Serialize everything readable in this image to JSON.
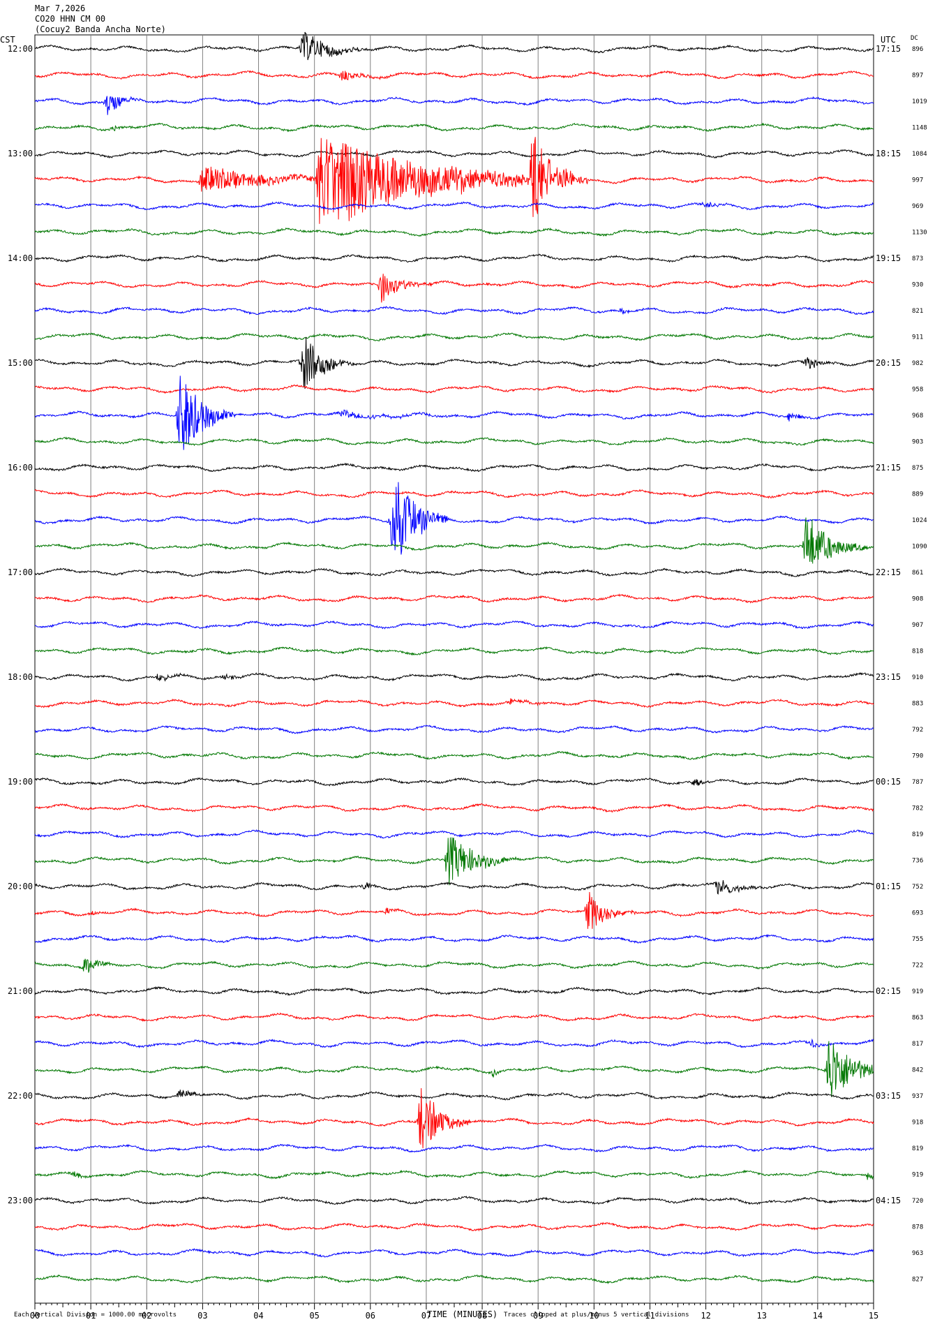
{
  "header": {
    "date": "Mar 7,2026",
    "channel": "CO20 HHN CM 00",
    "station": "(Cocuy2 Banda Ancha Norte)"
  },
  "left_axis_title": "CST",
  "right_axis_title": "UTC",
  "dc_title": "DC",
  "footer": {
    "scale_note": "Each Vertical Division = 1000.00 microvolts",
    "clip_note": "Traces clipped at plus/minus 5 vertical divisions"
  },
  "colors": {
    "trace_cycle": [
      "#000000",
      "#ff0000",
      "#0000ff",
      "#007700"
    ],
    "grid": "#808080"
  },
  "chart_data": {
    "type": "line",
    "xlabel": "TIME (MINUTES)",
    "xlim": [
      0,
      15
    ],
    "x_ticks": [
      "00",
      "01",
      "02",
      "03",
      "04",
      "05",
      "06",
      "07",
      "08",
      "09",
      "10",
      "11",
      "12",
      "13",
      "14",
      "15"
    ],
    "row_count": 48,
    "left_hour_labels": [
      {
        "row": 0,
        "label": "12:00"
      },
      {
        "row": 4,
        "label": "13:00"
      },
      {
        "row": 8,
        "label": "14:00"
      },
      {
        "row": 12,
        "label": "15:00"
      },
      {
        "row": 16,
        "label": "16:00"
      },
      {
        "row": 20,
        "label": "17:00"
      },
      {
        "row": 24,
        "label": "18:00"
      },
      {
        "row": 28,
        "label": "19:00"
      },
      {
        "row": 32,
        "label": "20:00"
      },
      {
        "row": 36,
        "label": "21:00"
      },
      {
        "row": 40,
        "label": "22:00"
      },
      {
        "row": 44,
        "label": "23:00"
      }
    ],
    "right_hour_labels": [
      {
        "row": 0,
        "label": "17:15"
      },
      {
        "row": 4,
        "label": "18:15"
      },
      {
        "row": 8,
        "label": "19:15"
      },
      {
        "row": 12,
        "label": "20:15"
      },
      {
        "row": 16,
        "label": "21:15"
      },
      {
        "row": 20,
        "label": "22:15"
      },
      {
        "row": 24,
        "label": "23:15"
      },
      {
        "row": 28,
        "label": "00:15"
      },
      {
        "row": 32,
        "label": "01:15"
      },
      {
        "row": 36,
        "label": "02:15"
      },
      {
        "row": 40,
        "label": "03:15"
      },
      {
        "row": 44,
        "label": "04:15"
      }
    ],
    "dc_values": [
      "896",
      "897",
      "1019",
      "1148",
      "1084",
      "997",
      "969",
      "1130",
      "873",
      "930",
      "821",
      "911",
      "982",
      "958",
      "968",
      "903",
      "875",
      "889",
      "1024",
      "1090",
      "861",
      "908",
      "907",
      "818",
      "910",
      "883",
      "792",
      "790",
      "787",
      "782",
      "819",
      "736",
      "752",
      "693",
      "755",
      "722",
      "919",
      "863",
      "817",
      "842",
      "937",
      "918",
      "819",
      "919",
      "720",
      "878",
      "963",
      "827"
    ],
    "events": [
      {
        "row": 0,
        "minute": 4.8,
        "amp": 24,
        "dur": 1.2
      },
      {
        "row": 1,
        "minute": 5.5,
        "amp": 8,
        "dur": 1.0
      },
      {
        "row": 2,
        "minute": 1.3,
        "amp": 18,
        "dur": 0.6
      },
      {
        "row": 3,
        "minute": 1.4,
        "amp": 5,
        "dur": 0.4
      },
      {
        "row": 5,
        "minute": 5.1,
        "amp": 75,
        "dur": 4.5
      },
      {
        "row": 5,
        "minute": 3.0,
        "amp": 20,
        "dur": 3.0
      },
      {
        "row": 5,
        "minute": 8.9,
        "amp": 70,
        "dur": 1.0
      },
      {
        "row": 5,
        "minute": 7.5,
        "amp": 10,
        "dur": 2.5
      },
      {
        "row": 6,
        "minute": 12.0,
        "amp": 6,
        "dur": 0.5
      },
      {
        "row": 9,
        "minute": 6.2,
        "amp": 24,
        "dur": 0.9
      },
      {
        "row": 10,
        "minute": 10.5,
        "amp": 6,
        "dur": 0.4
      },
      {
        "row": 12,
        "minute": 4.8,
        "amp": 44,
        "dur": 0.9
      },
      {
        "row": 12,
        "minute": 13.8,
        "amp": 10,
        "dur": 0.6
      },
      {
        "row": 14,
        "minute": 2.6,
        "amp": 68,
        "dur": 1.0
      },
      {
        "row": 14,
        "minute": 5.5,
        "amp": 5,
        "dur": 2.5
      },
      {
        "row": 14,
        "minute": 13.5,
        "amp": 9,
        "dur": 0.4
      },
      {
        "row": 18,
        "minute": 6.4,
        "amp": 80,
        "dur": 1.0
      },
      {
        "row": 19,
        "minute": 13.8,
        "amp": 48,
        "dur": 1.1
      },
      {
        "row": 24,
        "minute": 2.2,
        "amp": 7,
        "dur": 0.6
      },
      {
        "row": 24,
        "minute": 3.4,
        "amp": 6,
        "dur": 0.5
      },
      {
        "row": 25,
        "minute": 8.5,
        "amp": 5,
        "dur": 1.0
      },
      {
        "row": 28,
        "minute": 11.8,
        "amp": 9,
        "dur": 0.4
      },
      {
        "row": 31,
        "minute": 7.4,
        "amp": 40,
        "dur": 1.2
      },
      {
        "row": 32,
        "minute": 5.9,
        "amp": 7,
        "dur": 0.3
      },
      {
        "row": 32,
        "minute": 12.2,
        "amp": 13,
        "dur": 1.0
      },
      {
        "row": 33,
        "minute": 9.9,
        "amp": 30,
        "dur": 0.9
      },
      {
        "row": 33,
        "minute": 6.3,
        "amp": 6,
        "dur": 0.3
      },
      {
        "row": 33,
        "minute": 1.0,
        "amp": 5,
        "dur": 0.3
      },
      {
        "row": 35,
        "minute": 0.9,
        "amp": 16,
        "dur": 0.5
      },
      {
        "row": 38,
        "minute": 13.9,
        "amp": 7,
        "dur": 0.3
      },
      {
        "row": 39,
        "minute": 14.2,
        "amp": 55,
        "dur": 1.1
      },
      {
        "row": 39,
        "minute": 8.2,
        "amp": 7,
        "dur": 0.2
      },
      {
        "row": 40,
        "minute": 2.6,
        "amp": 8,
        "dur": 0.5
      },
      {
        "row": 41,
        "minute": 6.9,
        "amp": 52,
        "dur": 0.9
      },
      {
        "row": 43,
        "minute": 0.7,
        "amp": 4,
        "dur": 0.5
      },
      {
        "row": 43,
        "minute": 14.9,
        "amp": 5,
        "dur": 0.3
      }
    ]
  }
}
